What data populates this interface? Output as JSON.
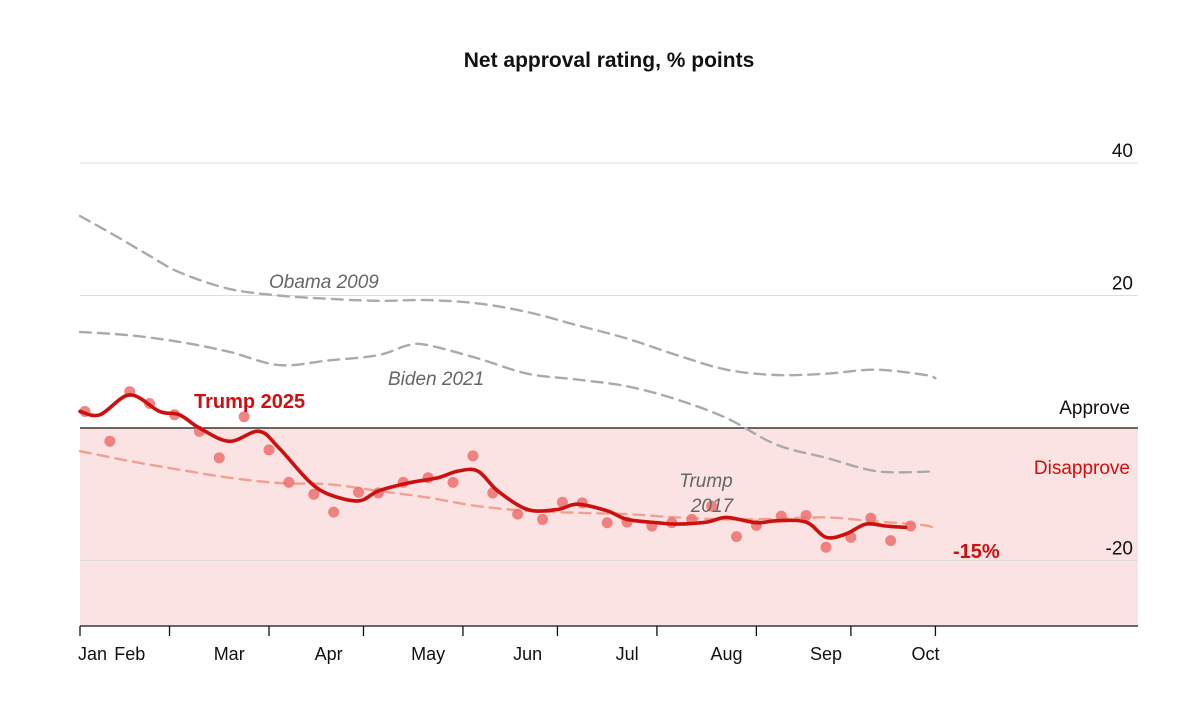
{
  "chart_data": {
    "type": "line",
    "title": "Net approval rating, % points",
    "ylim": [
      -30,
      40
    ],
    "y_ticks": [
      {
        "value": 40,
        "label": "40"
      },
      {
        "value": 20,
        "label": "20"
      },
      {
        "value": -20,
        "label": "-20"
      }
    ],
    "zero_line": {
      "value": 0
    },
    "band_labels": {
      "above": "Approve",
      "below": "Disapprove"
    },
    "x_domain": [
      0,
      9.4
    ],
    "x_ticks": [
      {
        "value": 0,
        "label": "Jan"
      },
      {
        "value": 0.5,
        "label": "Feb"
      },
      {
        "value": 1.5,
        "label": "Mar"
      },
      {
        "value": 2.5,
        "label": "Apr"
      },
      {
        "value": 3.5,
        "label": "May"
      },
      {
        "value": 4.5,
        "label": "Jun"
      },
      {
        "value": 5.5,
        "label": "Jul"
      },
      {
        "value": 6.5,
        "label": "Aug"
      },
      {
        "value": 7.5,
        "label": "Sep"
      },
      {
        "value": 8.5,
        "label": "Oct"
      }
    ],
    "x_tick_marks": [
      0,
      0.9,
      1.9,
      2.85,
      3.85,
      4.8,
      5.8,
      6.8,
      7.75,
      8.6
    ],
    "grid": true,
    "colors": {
      "trump2025": "#cc1010",
      "trump2025_points": "#ee6e6e",
      "trump2017": "#f0a090",
      "comparison": "#aaaaaa",
      "disapprove_band": "#fce3e3",
      "disapprove_text": "#cc1010",
      "gridline": "#dddddd"
    },
    "series": [
      {
        "name": "Obama 2009",
        "style": "dashed-grey",
        "x": [
          0,
          0.3,
          0.7,
          1.0,
          1.5,
          2.0,
          2.5,
          3.0,
          3.5,
          4.0,
          4.5,
          5.0,
          5.5,
          6.0,
          6.5,
          7.0,
          7.5,
          8.0,
          8.5,
          8.6
        ],
        "y": [
          32,
          29.5,
          26,
          23.5,
          21,
          20,
          19.5,
          19.2,
          19.3,
          18.8,
          17.5,
          15.5,
          13.5,
          11,
          8.8,
          8,
          8.2,
          8.8,
          8,
          7.5
        ]
      },
      {
        "name": "Biden 2021",
        "style": "dashed-grey",
        "x": [
          0,
          0.5,
          1.0,
          1.5,
          2.0,
          2.5,
          3.0,
          3.3,
          3.5,
          4.0,
          4.5,
          5.0,
          5.5,
          6.0,
          6.5,
          7.0,
          7.5,
          8.0,
          8.5,
          8.6
        ],
        "y": [
          14.5,
          14,
          13,
          11.5,
          9.5,
          10.2,
          11,
          12.5,
          12.5,
          10.5,
          8.2,
          7.3,
          6.3,
          4.3,
          1.5,
          -2.5,
          -4.5,
          -6.5,
          -6.6,
          -6.3
        ]
      },
      {
        "name": "Trump 2017",
        "style": "dashed-salmon",
        "x": [
          0,
          0.5,
          1.0,
          1.5,
          2.0,
          2.5,
          3.0,
          3.5,
          4.0,
          4.5,
          5.0,
          5.5,
          6.0,
          6.5,
          7.0,
          7.5,
          8.0,
          8.5,
          8.6
        ],
        "y": [
          -3.5,
          -5.0,
          -6.3,
          -7.5,
          -8.3,
          -8.5,
          -9.5,
          -10.5,
          -11.8,
          -12.5,
          -12.8,
          -13,
          -13.5,
          -13.8,
          -13.7,
          -13.5,
          -14.1,
          -14.7,
          -15.5
        ]
      },
      {
        "name": "Trump 2025",
        "style": "solid-red",
        "x": [
          0,
          0.2,
          0.5,
          0.8,
          1.0,
          1.2,
          1.5,
          1.8,
          2.0,
          2.3,
          2.5,
          2.8,
          3.0,
          3.3,
          3.6,
          3.8,
          4.0,
          4.2,
          4.5,
          4.8,
          5.0,
          5.3,
          5.5,
          5.8,
          6.0,
          6.3,
          6.5,
          6.8,
          7.0,
          7.3,
          7.5,
          7.7,
          7.9,
          8.1,
          8.3
        ],
        "y": [
          2.5,
          2,
          5,
          2.5,
          2,
          0,
          -2,
          -0.5,
          -3,
          -8,
          -10,
          -11,
          -9.5,
          -8.3,
          -7.5,
          -6.5,
          -6.5,
          -9.5,
          -12.3,
          -12.3,
          -11.5,
          -12.5,
          -13.8,
          -14.3,
          -14.5,
          -14.2,
          -13.5,
          -14.3,
          -14,
          -14.2,
          -16.5,
          -16,
          -14.5,
          -14.8,
          -15
        ]
      }
    ],
    "trump2025_points": {
      "x": [
        0.05,
        0.3,
        0.5,
        0.7,
        0.95,
        1.2,
        1.4,
        1.65,
        1.9,
        2.1,
        2.35,
        2.55,
        2.8,
        3.0,
        3.25,
        3.5,
        3.75,
        3.95,
        4.15,
        4.4,
        4.65,
        4.85,
        5.05,
        5.3,
        5.5,
        5.75,
        5.95,
        6.15,
        6.35,
        6.6,
        6.8,
        7.05,
        7.3,
        7.5,
        7.75,
        7.95,
        8.15,
        8.35
      ],
      "y": [
        2.5,
        -2,
        5.5,
        3.7,
        2,
        -0.5,
        -4.5,
        1.7,
        -3.3,
        -8.2,
        -10,
        -12.7,
        -9.7,
        -9.8,
        -8.2,
        -7.5,
        -8.2,
        -4.2,
        -9.8,
        -13,
        -13.8,
        -11.2,
        -11.3,
        -14.3,
        -14.2,
        -14.8,
        -14.3,
        -13.8,
        -11.8,
        -16.4,
        -14.7,
        -13.3,
        -13.2,
        -18,
        -16.5,
        -13.6,
        -17,
        -14.8
      ]
    },
    "annotations": [
      {
        "text": "Obama 2009",
        "series": "Obama 2009"
      },
      {
        "text": "Biden 2021",
        "series": "Biden 2021"
      },
      {
        "text": "Trump",
        "series": "Trump 2017"
      },
      {
        "text": "2017",
        "series": "Trump 2017"
      },
      {
        "text": "Trump 2025",
        "series": "Trump 2025"
      },
      {
        "text": "-15%",
        "series": "Trump 2025",
        "role": "latest-value"
      }
    ]
  }
}
